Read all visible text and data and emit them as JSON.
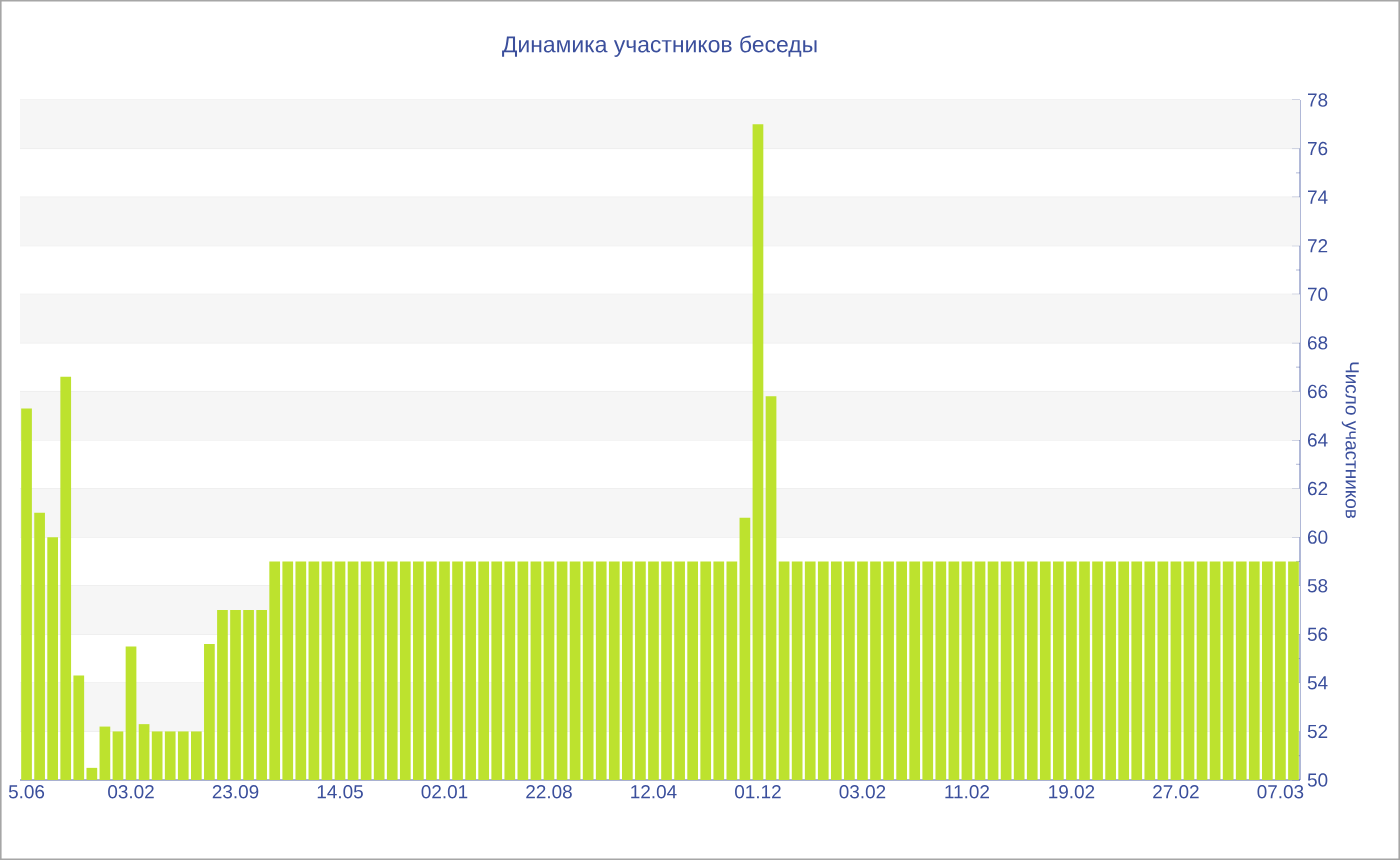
{
  "chart_data": {
    "type": "bar",
    "title": "Динамика участников беседы",
    "ylabel": "Число участников",
    "categories": [
      "5.06",
      null,
      null,
      null,
      null,
      null,
      null,
      null,
      "03.02",
      null,
      null,
      null,
      null,
      null,
      null,
      null,
      "23.09",
      null,
      null,
      null,
      null,
      null,
      null,
      null,
      "14.05",
      null,
      null,
      null,
      null,
      null,
      null,
      null,
      "02.01",
      null,
      null,
      null,
      null,
      null,
      null,
      null,
      "22.08",
      null,
      null,
      null,
      null,
      null,
      null,
      null,
      "12.04",
      null,
      null,
      null,
      null,
      null,
      null,
      null,
      "01.12",
      null,
      null,
      null,
      null,
      null,
      null,
      null,
      "03.02",
      null,
      null,
      null,
      null,
      null,
      null,
      null,
      "11.02",
      null,
      null,
      null,
      null,
      null,
      null,
      null,
      "19.02",
      null,
      null,
      null,
      null,
      null,
      null,
      null,
      "27.02",
      null,
      null,
      null,
      null,
      null,
      null,
      null,
      "07.03",
      null
    ],
    "values": [
      65.3,
      61,
      60,
      66.6,
      54.3,
      50.5,
      52.2,
      52,
      55.5,
      52.3,
      52,
      52,
      52,
      52,
      55.6,
      57,
      57,
      57,
      57,
      59,
      59,
      59,
      59,
      59,
      59,
      59,
      59,
      59,
      59,
      59,
      59,
      59,
      59,
      59,
      59,
      59,
      59,
      59,
      59,
      59,
      59,
      59,
      59,
      59,
      59,
      59,
      59,
      59,
      59,
      59,
      59,
      59,
      59,
      59,
      59,
      60.8,
      77,
      65.8,
      59,
      59,
      59,
      59,
      59,
      59,
      59,
      59,
      59,
      59,
      59,
      59,
      59,
      59,
      59,
      59,
      59,
      59,
      59,
      59,
      59,
      59,
      59,
      59,
      59,
      59,
      59,
      59,
      59,
      59,
      59,
      59,
      59,
      59,
      59,
      59,
      59,
      59,
      59,
      59
    ],
    "color": "#bde22e",
    "ylim": [
      50,
      78
    ],
    "yticks": [
      50,
      52,
      54,
      56,
      58,
      60,
      62,
      64,
      66,
      68,
      70,
      72,
      74,
      76,
      78
    ],
    "grid": "y"
  }
}
